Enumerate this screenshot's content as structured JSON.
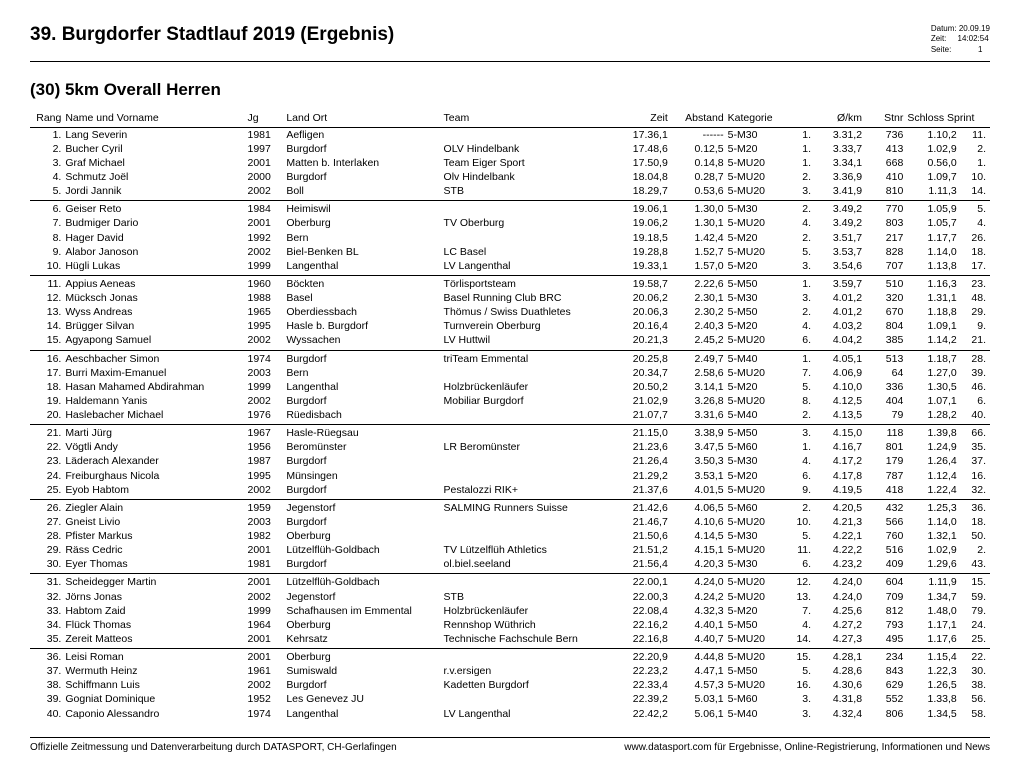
{
  "title": "39. Burgdorfer Stadtlauf 2019 (Ergebnis)",
  "meta": {
    "datum_label": "Datum:",
    "datum": "20.09.19",
    "zeit_label": "Zeit:",
    "zeit": "14:02:54",
    "seite_label": "Seite:",
    "seite": "1"
  },
  "subtitle": "(30) 5km Overall Herren",
  "columns": [
    "Rang",
    "Name und Vorname",
    "Jg",
    "Land Ort",
    "Team",
    "Zeit",
    "Abstand",
    "Kategorie",
    "",
    "Ø/km",
    "Stnr",
    "Schloss Sprint",
    ""
  ],
  "rows": [
    {
      "g": 1,
      "rang": "1.",
      "name": "Lang Severin",
      "jg": "1981",
      "ort": "Aefligen",
      "team": "",
      "zeit": "17.36,1",
      "abst": "------",
      "kat": "5-M30",
      "katr": "1.",
      "okm": "3.31,2",
      "stnr": "736",
      "ss1": "1.10,2",
      "ss2": "11."
    },
    {
      "g": 1,
      "rang": "2.",
      "name": "Bucher Cyril",
      "jg": "1997",
      "ort": "Burgdorf",
      "team": "OLV Hindelbank",
      "zeit": "17.48,6",
      "abst": "0.12,5",
      "kat": "5-M20",
      "katr": "1.",
      "okm": "3.33,7",
      "stnr": "413",
      "ss1": "1.02,9",
      "ss2": "2."
    },
    {
      "g": 1,
      "rang": "3.",
      "name": "Graf Michael",
      "jg": "2001",
      "ort": "Matten b. Interlaken",
      "team": "Team Eiger Sport",
      "zeit": "17.50,9",
      "abst": "0.14,8",
      "kat": "5-MU20",
      "katr": "1.",
      "okm": "3.34,1",
      "stnr": "668",
      "ss1": "0.56,0",
      "ss2": "1."
    },
    {
      "g": 1,
      "rang": "4.",
      "name": "Schmutz Joël",
      "jg": "2000",
      "ort": "Burgdorf",
      "team": "Olv Hindelbank",
      "zeit": "18.04,8",
      "abst": "0.28,7",
      "kat": "5-MU20",
      "katr": "2.",
      "okm": "3.36,9",
      "stnr": "410",
      "ss1": "1.09,7",
      "ss2": "10."
    },
    {
      "g": 1,
      "rang": "5.",
      "name": "Jordi Jannik",
      "jg": "2002",
      "ort": "Boll",
      "team": "STB",
      "zeit": "18.29,7",
      "abst": "0.53,6",
      "kat": "5-MU20",
      "katr": "3.",
      "okm": "3.41,9",
      "stnr": "810",
      "ss1": "1.11,3",
      "ss2": "14."
    },
    {
      "g": 2,
      "rang": "6.",
      "name": "Geiser Reto",
      "jg": "1984",
      "ort": "Heimiswil",
      "team": "",
      "zeit": "19.06,1",
      "abst": "1.30,0",
      "kat": "5-M30",
      "katr": "2.",
      "okm": "3.49,2",
      "stnr": "770",
      "ss1": "1.05,9",
      "ss2": "5."
    },
    {
      "g": 2,
      "rang": "7.",
      "name": "Budmiger Dario",
      "jg": "2001",
      "ort": "Oberburg",
      "team": "TV Oberburg",
      "zeit": "19.06,2",
      "abst": "1.30,1",
      "kat": "5-MU20",
      "katr": "4.",
      "okm": "3.49,2",
      "stnr": "803",
      "ss1": "1.05,7",
      "ss2": "4."
    },
    {
      "g": 2,
      "rang": "8.",
      "name": "Hager David",
      "jg": "1992",
      "ort": "Bern",
      "team": "",
      "zeit": "19.18,5",
      "abst": "1.42,4",
      "kat": "5-M20",
      "katr": "2.",
      "okm": "3.51,7",
      "stnr": "217",
      "ss1": "1.17,7",
      "ss2": "26."
    },
    {
      "g": 2,
      "rang": "9.",
      "name": "Alabor Janoson",
      "jg": "2002",
      "ort": "Biel-Benken BL",
      "team": "LC Basel",
      "zeit": "19.28,8",
      "abst": "1.52,7",
      "kat": "5-MU20",
      "katr": "5.",
      "okm": "3.53,7",
      "stnr": "828",
      "ss1": "1.14,0",
      "ss2": "18."
    },
    {
      "g": 2,
      "rang": "10.",
      "name": "Hügli Lukas",
      "jg": "1999",
      "ort": "Langenthal",
      "team": "LV Langenthal",
      "zeit": "19.33,1",
      "abst": "1.57,0",
      "kat": "5-M20",
      "katr": "3.",
      "okm": "3.54,6",
      "stnr": "707",
      "ss1": "1.13,8",
      "ss2": "17."
    },
    {
      "g": 3,
      "rang": "11.",
      "name": "Appius Aeneas",
      "jg": "1960",
      "ort": "Böckten",
      "team": "Törlisportsteam",
      "zeit": "19.58,7",
      "abst": "2.22,6",
      "kat": "5-M50",
      "katr": "1.",
      "okm": "3.59,7",
      "stnr": "510",
      "ss1": "1.16,3",
      "ss2": "23."
    },
    {
      "g": 3,
      "rang": "12.",
      "name": "Mücksch Jonas",
      "jg": "1988",
      "ort": "Basel",
      "team": "Basel Running Club BRC",
      "zeit": "20.06,2",
      "abst": "2.30,1",
      "kat": "5-M30",
      "katr": "3.",
      "okm": "4.01,2",
      "stnr": "320",
      "ss1": "1.31,1",
      "ss2": "48."
    },
    {
      "g": 3,
      "rang": "13.",
      "name": "Wyss Andreas",
      "jg": "1965",
      "ort": "Oberdiessbach",
      "team": "Thömus / Swiss Duathletes",
      "zeit": "20.06,3",
      "abst": "2.30,2",
      "kat": "5-M50",
      "katr": "2.",
      "okm": "4.01,2",
      "stnr": "670",
      "ss1": "1.18,8",
      "ss2": "29."
    },
    {
      "g": 3,
      "rang": "14.",
      "name": "Brügger Silvan",
      "jg": "1995",
      "ort": "Hasle b. Burgdorf",
      "team": "Turnverein Oberburg",
      "zeit": "20.16,4",
      "abst": "2.40,3",
      "kat": "5-M20",
      "katr": "4.",
      "okm": "4.03,2",
      "stnr": "804",
      "ss1": "1.09,1",
      "ss2": "9."
    },
    {
      "g": 3,
      "rang": "15.",
      "name": "Agyapong Samuel",
      "jg": "2002",
      "ort": "Wyssachen",
      "team": "LV Huttwil",
      "zeit": "20.21,3",
      "abst": "2.45,2",
      "kat": "5-MU20",
      "katr": "6.",
      "okm": "4.04,2",
      "stnr": "385",
      "ss1": "1.14,2",
      "ss2": "21."
    },
    {
      "g": 4,
      "rang": "16.",
      "name": "Aeschbacher Simon",
      "jg": "1974",
      "ort": "Burgdorf",
      "team": "triTeam Emmental",
      "zeit": "20.25,8",
      "abst": "2.49,7",
      "kat": "5-M40",
      "katr": "1.",
      "okm": "4.05,1",
      "stnr": "513",
      "ss1": "1.18,7",
      "ss2": "28."
    },
    {
      "g": 4,
      "rang": "17.",
      "name": "Burri Maxim-Emanuel",
      "jg": "2003",
      "ort": "Bern",
      "team": "",
      "zeit": "20.34,7",
      "abst": "2.58,6",
      "kat": "5-MU20",
      "katr": "7.",
      "okm": "4.06,9",
      "stnr": "64",
      "ss1": "1.27,0",
      "ss2": "39."
    },
    {
      "g": 4,
      "rang": "18.",
      "name": "Hasan Mahamed Abdirahman",
      "jg": "1999",
      "ort": "Langenthal",
      "team": "Holzbrückenläufer",
      "zeit": "20.50,2",
      "abst": "3.14,1",
      "kat": "5-M20",
      "katr": "5.",
      "okm": "4.10,0",
      "stnr": "336",
      "ss1": "1.30,5",
      "ss2": "46."
    },
    {
      "g": 4,
      "rang": "19.",
      "name": "Haldemann Yanis",
      "jg": "2002",
      "ort": "Burgdorf",
      "team": "Mobiliar Burgdorf",
      "zeit": "21.02,9",
      "abst": "3.26,8",
      "kat": "5-MU20",
      "katr": "8.",
      "okm": "4.12,5",
      "stnr": "404",
      "ss1": "1.07,1",
      "ss2": "6."
    },
    {
      "g": 4,
      "rang": "20.",
      "name": "Haslebacher Michael",
      "jg": "1976",
      "ort": "Rüedisbach",
      "team": "",
      "zeit": "21.07,7",
      "abst": "3.31,6",
      "kat": "5-M40",
      "katr": "2.",
      "okm": "4.13,5",
      "stnr": "79",
      "ss1": "1.28,2",
      "ss2": "40."
    },
    {
      "g": 5,
      "rang": "21.",
      "name": "Marti Jürg",
      "jg": "1967",
      "ort": "Hasle-Rüegsau",
      "team": "",
      "zeit": "21.15,0",
      "abst": "3.38,9",
      "kat": "5-M50",
      "katr": "3.",
      "okm": "4.15,0",
      "stnr": "118",
      "ss1": "1.39,8",
      "ss2": "66."
    },
    {
      "g": 5,
      "rang": "22.",
      "name": "Vögtli Andy",
      "jg": "1956",
      "ort": "Beromünster",
      "team": "LR Beromünster",
      "zeit": "21.23,6",
      "abst": "3.47,5",
      "kat": "5-M60",
      "katr": "1.",
      "okm": "4.16,7",
      "stnr": "801",
      "ss1": "1.24,9",
      "ss2": "35."
    },
    {
      "g": 5,
      "rang": "23.",
      "name": "Läderach Alexander",
      "jg": "1987",
      "ort": "Burgdorf",
      "team": "",
      "zeit": "21.26,4",
      "abst": "3.50,3",
      "kat": "5-M30",
      "katr": "4.",
      "okm": "4.17,2",
      "stnr": "179",
      "ss1": "1.26,4",
      "ss2": "37."
    },
    {
      "g": 5,
      "rang": "24.",
      "name": "Freiburghaus Nicola",
      "jg": "1995",
      "ort": "Münsingen",
      "team": "",
      "zeit": "21.29,2",
      "abst": "3.53,1",
      "kat": "5-M20",
      "katr": "6.",
      "okm": "4.17,8",
      "stnr": "787",
      "ss1": "1.12,4",
      "ss2": "16."
    },
    {
      "g": 5,
      "rang": "25.",
      "name": "Eyob Habtom",
      "jg": "2002",
      "ort": "Burgdorf",
      "team": "Pestalozzi RIK+",
      "zeit": "21.37,6",
      "abst": "4.01,5",
      "kat": "5-MU20",
      "katr": "9.",
      "okm": "4.19,5",
      "stnr": "418",
      "ss1": "1.22,4",
      "ss2": "32."
    },
    {
      "g": 6,
      "rang": "26.",
      "name": "Ziegler Alain",
      "jg": "1959",
      "ort": "Jegenstorf",
      "team": "SALMING Runners Suisse",
      "zeit": "21.42,6",
      "abst": "4.06,5",
      "kat": "5-M60",
      "katr": "2.",
      "okm": "4.20,5",
      "stnr": "432",
      "ss1": "1.25,3",
      "ss2": "36."
    },
    {
      "g": 6,
      "rang": "27.",
      "name": "Gneist Livio",
      "jg": "2003",
      "ort": "Burgdorf",
      "team": "",
      "zeit": "21.46,7",
      "abst": "4.10,6",
      "kat": "5-MU20",
      "katr": "10.",
      "okm": "4.21,3",
      "stnr": "566",
      "ss1": "1.14,0",
      "ss2": "18."
    },
    {
      "g": 6,
      "rang": "28.",
      "name": "Pfister Markus",
      "jg": "1982",
      "ort": "Oberburg",
      "team": "",
      "zeit": "21.50,6",
      "abst": "4.14,5",
      "kat": "5-M30",
      "katr": "5.",
      "okm": "4.22,1",
      "stnr": "760",
      "ss1": "1.32,1",
      "ss2": "50."
    },
    {
      "g": 6,
      "rang": "29.",
      "name": "Räss Cedric",
      "jg": "2001",
      "ort": "Lützelflüh-Goldbach",
      "team": "TV Lützelflüh Athletics",
      "zeit": "21.51,2",
      "abst": "4.15,1",
      "kat": "5-MU20",
      "katr": "11.",
      "okm": "4.22,2",
      "stnr": "516",
      "ss1": "1.02,9",
      "ss2": "2."
    },
    {
      "g": 6,
      "rang": "30.",
      "name": "Eyer Thomas",
      "jg": "1981",
      "ort": "Burgdorf",
      "team": "ol.biel.seeland",
      "zeit": "21.56,4",
      "abst": "4.20,3",
      "kat": "5-M30",
      "katr": "6.",
      "okm": "4.23,2",
      "stnr": "409",
      "ss1": "1.29,6",
      "ss2": "43."
    },
    {
      "g": 7,
      "rang": "31.",
      "name": "Scheidegger Martin",
      "jg": "2001",
      "ort": "Lützelflüh-Goldbach",
      "team": "",
      "zeit": "22.00,1",
      "abst": "4.24,0",
      "kat": "5-MU20",
      "katr": "12.",
      "okm": "4.24,0",
      "stnr": "604",
      "ss1": "1.11,9",
      "ss2": "15."
    },
    {
      "g": 7,
      "rang": "32.",
      "name": "Jörns Jonas",
      "jg": "2002",
      "ort": "Jegenstorf",
      "team": "STB",
      "zeit": "22.00,3",
      "abst": "4.24,2",
      "kat": "5-MU20",
      "katr": "13.",
      "okm": "4.24,0",
      "stnr": "709",
      "ss1": "1.34,7",
      "ss2": "59."
    },
    {
      "g": 7,
      "rang": "33.",
      "name": "Habtom Zaid",
      "jg": "1999",
      "ort": "Schafhausen im Emmental",
      "team": "Holzbrückenläufer",
      "zeit": "22.08,4",
      "abst": "4.32,3",
      "kat": "5-M20",
      "katr": "7.",
      "okm": "4.25,6",
      "stnr": "812",
      "ss1": "1.48,0",
      "ss2": "79."
    },
    {
      "g": 7,
      "rang": "34.",
      "name": "Flück Thomas",
      "jg": "1964",
      "ort": "Oberburg",
      "team": "Rennshop Wüthrich",
      "zeit": "22.16,2",
      "abst": "4.40,1",
      "kat": "5-M50",
      "katr": "4.",
      "okm": "4.27,2",
      "stnr": "793",
      "ss1": "1.17,1",
      "ss2": "24."
    },
    {
      "g": 7,
      "rang": "35.",
      "name": "Zereit Matteos",
      "jg": "2001",
      "ort": "Kehrsatz",
      "team": "Technische Fachschule Bern",
      "zeit": "22.16,8",
      "abst": "4.40,7",
      "kat": "5-MU20",
      "katr": "14.",
      "okm": "4.27,3",
      "stnr": "495",
      "ss1": "1.17,6",
      "ss2": "25."
    },
    {
      "g": 8,
      "rang": "36.",
      "name": "Leisi Roman",
      "jg": "2001",
      "ort": "Oberburg",
      "team": "",
      "zeit": "22.20,9",
      "abst": "4.44,8",
      "kat": "5-MU20",
      "katr": "15.",
      "okm": "4.28,1",
      "stnr": "234",
      "ss1": "1.15,4",
      "ss2": "22."
    },
    {
      "g": 8,
      "rang": "37.",
      "name": "Wermuth Heinz",
      "jg": "1961",
      "ort": "Sumiswald",
      "team": "r.v.ersigen",
      "zeit": "22.23,2",
      "abst": "4.47,1",
      "kat": "5-M50",
      "katr": "5.",
      "okm": "4.28,6",
      "stnr": "843",
      "ss1": "1.22,3",
      "ss2": "30."
    },
    {
      "g": 8,
      "rang": "38.",
      "name": "Schiffmann Luis",
      "jg": "2002",
      "ort": "Burgdorf",
      "team": "Kadetten Burgdorf",
      "zeit": "22.33,4",
      "abst": "4.57,3",
      "kat": "5-MU20",
      "katr": "16.",
      "okm": "4.30,6",
      "stnr": "629",
      "ss1": "1.26,5",
      "ss2": "38."
    },
    {
      "g": 8,
      "rang": "39.",
      "name": "Gogniat Dominique",
      "jg": "1952",
      "ort": "Les Genevez JU",
      "team": "",
      "zeit": "22.39,2",
      "abst": "5.03,1",
      "kat": "5-M60",
      "katr": "3.",
      "okm": "4.31,8",
      "stnr": "552",
      "ss1": "1.33,8",
      "ss2": "56."
    },
    {
      "g": 8,
      "rang": "40.",
      "name": "Caponio Alessandro",
      "jg": "1974",
      "ort": "Langenthal",
      "team": "LV Langenthal",
      "zeit": "22.42,2",
      "abst": "5.06,1",
      "kat": "5-M40",
      "katr": "3.",
      "okm": "4.32,4",
      "stnr": "806",
      "ss1": "1.34,5",
      "ss2": "58."
    }
  ],
  "footer": {
    "left": "Offizielle Zeitmessung und Datenverarbeitung durch DATASPORT, CH-Gerlafingen",
    "right": "www.datasport.com für Ergebnisse, Online-Registrierung, Informationen und News"
  }
}
